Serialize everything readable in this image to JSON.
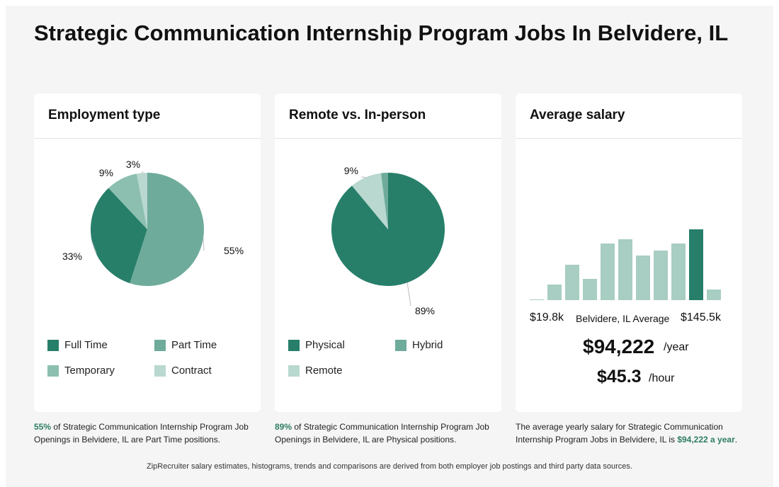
{
  "title": "Strategic Communication Internship Program Jobs In Belvidere, IL",
  "colors": {
    "dark": "#277f6a",
    "mid": "#6eab9b",
    "light": "#8cbfb0",
    "pale": "#b9d8cf",
    "bar": "#a8cdc2",
    "accent": "#2e7d64"
  },
  "employment": {
    "title": "Employment type",
    "legend": [
      "Full Time",
      "Part Time",
      "Temporary",
      "Contract"
    ],
    "caption_pct": "55%",
    "caption_rest": " of Strategic Communication Internship Program Job Openings in Belvidere, IL are Part Time positions."
  },
  "remote": {
    "title": "Remote vs. In-person",
    "legend": [
      "Physical",
      "Hybrid",
      "Remote"
    ],
    "caption_pct": "89%",
    "caption_rest": " of Strategic Communication Internship Program Job Openings in Belvidere, IL are Physical positions."
  },
  "salary": {
    "title": "Average salary",
    "min_label": "$19.8k",
    "max_label": "$145.5k",
    "mid_label": "Belvidere, IL Average",
    "yearly": "$94,222",
    "yearly_unit": "/year",
    "hourly": "$45.3",
    "hourly_unit": "/hour",
    "caption_pre": "The average yearly salary for Strategic Communication Internship Program Jobs in Belvidere, IL is ",
    "caption_hl": "$94,222 a year",
    "caption_post": "."
  },
  "footer": "ZipRecruiter salary estimates, histograms, trends and comparisons are derived from both employer job postings and third party data sources.",
  "chart_data": [
    {
      "type": "pie",
      "title": "Employment type",
      "labels": [
        "Part Time",
        "Full Time",
        "Temporary",
        "Contract"
      ],
      "values": [
        55,
        33,
        9,
        3
      ],
      "value_labels": [
        "55%",
        "33%",
        "9%",
        "3%"
      ],
      "colors": [
        "#6eab9b",
        "#277f6a",
        "#8cbfb0",
        "#b9d8cf"
      ]
    },
    {
      "type": "pie",
      "title": "Remote vs. In-person",
      "labels": [
        "Physical",
        "Remote",
        "Hybrid"
      ],
      "values": [
        89,
        9,
        2
      ],
      "value_labels": [
        "89%",
        "9%",
        ""
      ],
      "colors": [
        "#277f6a",
        "#b9d8cf",
        "#6eab9b"
      ]
    },
    {
      "type": "bar",
      "title": "Average salary",
      "values": [
        1,
        22,
        50,
        30,
        80,
        86,
        63,
        70,
        80,
        100,
        15
      ],
      "highlight_index": 9,
      "ylim": [
        0,
        100
      ]
    }
  ]
}
